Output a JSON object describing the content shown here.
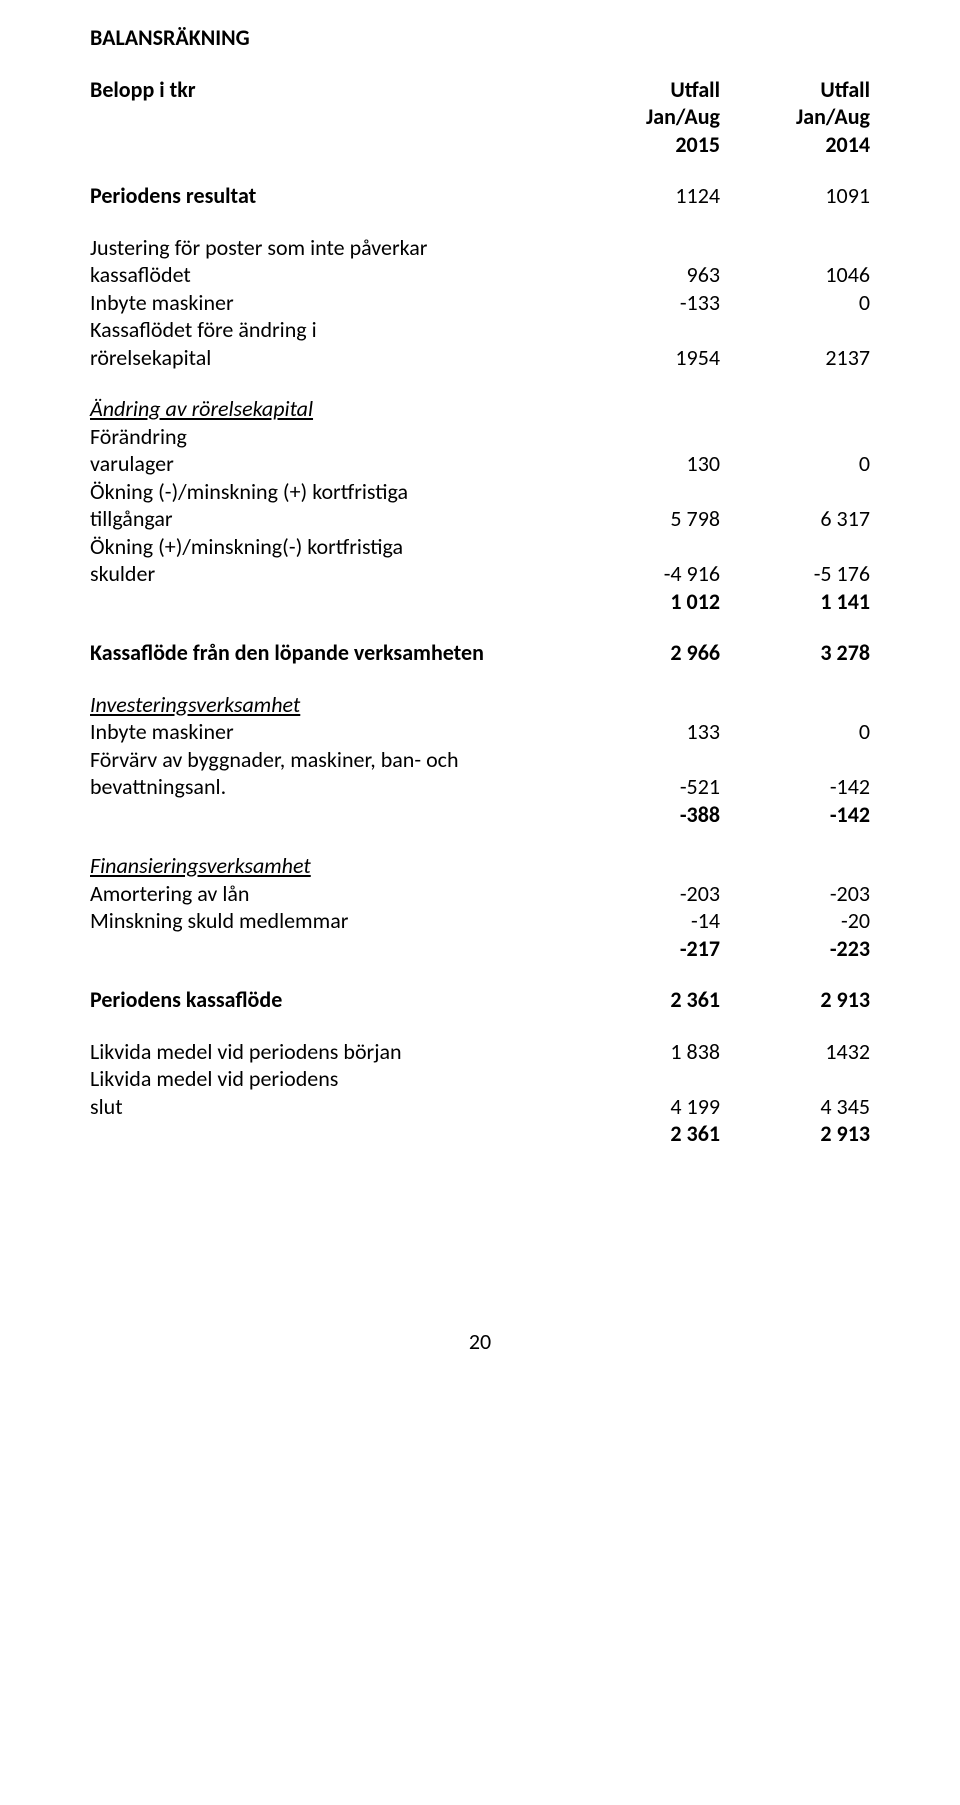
{
  "title": "BALANSRÄKNING",
  "header": {
    "label": "Belopp i tkr",
    "col1_top": "Utfall",
    "col1_mid": "Jan/Aug",
    "col1_bot": "2015",
    "col2_top": "Utfall",
    "col2_mid": "Jan/Aug",
    "col2_bot": "2014"
  },
  "rows": {
    "periodens_resultat": {
      "label": "Periodens resultat",
      "c1": "1124",
      "c2": "1091"
    },
    "justering": {
      "label": "Justering för poster som inte påverkar"
    },
    "kassaflodet": {
      "label": "kassaflödet",
      "c1": "963",
      "c2": "1046"
    },
    "inbyte_maskiner_top": {
      "label": "Inbyte maskiner",
      "c1": "-133",
      "c2": "0"
    },
    "kassaflodet_fore": {
      "label": "Kassaflödet före ändring i"
    },
    "rorelsekapital": {
      "label": "rörelsekapital",
      "c1": "1954",
      "c2": "2137"
    },
    "andring_av": {
      "label": "Ändring av rörelsekapital"
    },
    "forandring": {
      "label": "Förändring"
    },
    "varulager": {
      "label": "varulager",
      "c1": "130",
      "c2": "0"
    },
    "okning_minus": {
      "label": "Ökning (-)/minskning (+) kortfristiga"
    },
    "tillgangar": {
      "label": "tillgångar",
      "c1": "5 798",
      "c2": "6 317"
    },
    "okning_plus": {
      "label": "Ökning (+)/minskning(-) kortfristiga"
    },
    "skulder": {
      "label": "skulder",
      "c1": "-4 916",
      "c2": "-5 176"
    },
    "subtotal1": {
      "c1": "1 012",
      "c2": "1 141"
    },
    "kassaflode_lopande": {
      "label": "Kassaflöde från den löpande verksamheten",
      "c1": "2 966",
      "c2": "3 278"
    },
    "investeringsverksamhet": {
      "label": "Investeringsverksamhet"
    },
    "inbyte_maskiner2": {
      "label": "Inbyte maskiner",
      "c1": "133",
      "c2": "0"
    },
    "forvarv": {
      "label": "Förvärv av byggnader, maskiner, ban- och"
    },
    "bevattningsanl": {
      "label": "bevattningsanl.",
      "c1": "-521",
      "c2": "-142"
    },
    "subtotal2": {
      "c1": "-388",
      "c2": "-142"
    },
    "finansieringsverksamhet": {
      "label": "Finansieringsverksamhet"
    },
    "amortering": {
      "label": "Amortering av lån",
      "c1": "-203",
      "c2": "-203"
    },
    "minskning_skuld": {
      "label": "Minskning skuld medlemmar",
      "c1": "-14",
      "c2": "-20"
    },
    "subtotal3": {
      "c1": "-217",
      "c2": "-223"
    },
    "periodens_kassaflode": {
      "label": "Periodens kassaflöde",
      "c1": "2 361",
      "c2": "2 913"
    },
    "likvida_borjan": {
      "label": "Likvida medel vid periodens början",
      "c1": "1 838",
      "c2": "1432"
    },
    "likvida_periodens": {
      "label": "Likvida medel vid periodens"
    },
    "slut": {
      "label": "slut",
      "c1": "4 199",
      "c2": "4 345"
    },
    "final_total": {
      "c1": "2 361",
      "c2": "2 913"
    }
  },
  "page_number": "20"
}
